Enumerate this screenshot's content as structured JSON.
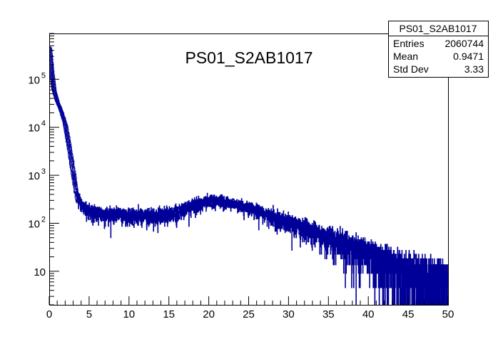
{
  "chart_data": {
    "type": "histogram",
    "title": "PS01_S2AB1017",
    "xlabel": "",
    "ylabel": "",
    "xlim": [
      0,
      50
    ],
    "ylim": [
      2,
      900000
    ],
    "yscale": "log",
    "grid": false,
    "line_color": "#000099",
    "x_ticks": [
      "0",
      "5",
      "10",
      "15",
      "20",
      "25",
      "30",
      "35",
      "40",
      "45",
      "50"
    ],
    "y_ticks": [
      {
        "value": 10,
        "base": "10",
        "exp": ""
      },
      {
        "value": 100,
        "base": "10",
        "exp": "2"
      },
      {
        "value": 1000,
        "base": "10",
        "exp": "3"
      },
      {
        "value": 10000,
        "base": "10",
        "exp": "4"
      },
      {
        "value": 100000,
        "base": "10",
        "exp": "5"
      }
    ],
    "profile": {
      "x": [
        0,
        0.3,
        0.6,
        1.0,
        1.5,
        2.0,
        2.5,
        3.0,
        3.5,
        4.0,
        5.0,
        6.0,
        8.0,
        10.0,
        12.0,
        14.0,
        15.0,
        16.0,
        17.0,
        18.0,
        19.0,
        20.0,
        21.0,
        22.0,
        23.0,
        24.0,
        25.0,
        26.0,
        27.0,
        28.0,
        30.0,
        32.0,
        34.0,
        36.0,
        38.0,
        40.0,
        42.0,
        44.0,
        46.0,
        48.0,
        50.0
      ],
      "y": [
        500000,
        150000,
        60000,
        35000,
        22000,
        12000,
        4000,
        1200,
        350,
        240,
        180,
        160,
        150,
        145,
        143,
        145,
        150,
        170,
        200,
        235,
        265,
        285,
        290,
        280,
        260,
        235,
        210,
        185,
        160,
        140,
        105,
        78,
        58,
        43,
        32,
        24,
        17,
        12,
        9,
        7,
        6
      ]
    }
  },
  "stats_box": {
    "name": "PS01_S2AB1017",
    "rows": [
      {
        "label": "Entries",
        "value": "2060744"
      },
      {
        "label": "Mean",
        "value": "0.9471"
      },
      {
        "label": "Std Dev",
        "value": "3.33"
      }
    ]
  }
}
